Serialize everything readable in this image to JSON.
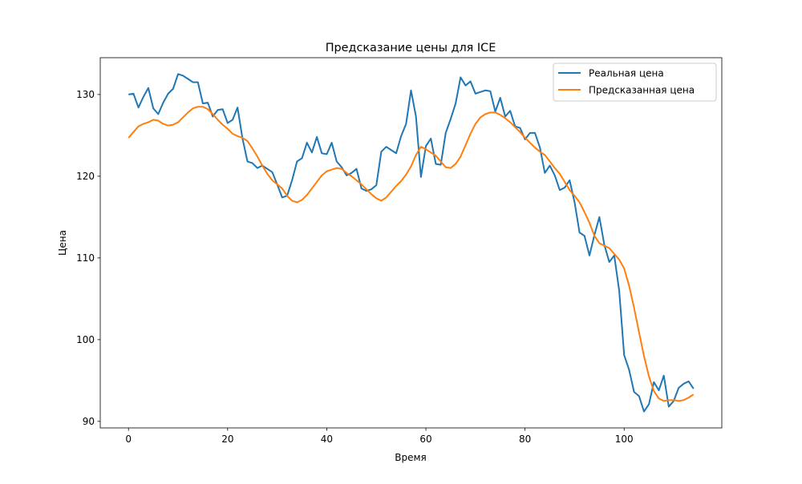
{
  "chart_data": {
    "type": "line",
    "title": "Предсказание цены для ICE",
    "xlabel": "Время",
    "ylabel": "Цена",
    "xlim": [
      -5.7,
      119.7
    ],
    "ylim": [
      89.2,
      134.5
    ],
    "xticks": [
      0,
      20,
      40,
      60,
      80,
      100
    ],
    "yticks": [
      90,
      100,
      110,
      120,
      130
    ],
    "grid": false,
    "legend_position": "top-right",
    "series": [
      {
        "name": "Реальная цена",
        "color": "#1f77b4",
        "x": [
          0,
          1,
          2,
          3,
          4,
          5,
          6,
          7,
          8,
          9,
          10,
          11,
          12,
          13,
          14,
          15,
          16,
          17,
          18,
          19,
          20,
          21,
          22,
          23,
          24,
          25,
          26,
          27,
          28,
          29,
          30,
          31,
          32,
          33,
          34,
          35,
          36,
          37,
          38,
          39,
          40,
          41,
          42,
          43,
          44,
          45,
          46,
          47,
          48,
          49,
          50,
          51,
          52,
          53,
          54,
          55,
          56,
          57,
          58,
          59,
          60,
          61,
          62,
          63,
          64,
          65,
          66,
          67,
          68,
          69,
          70,
          71,
          72,
          73,
          74,
          75,
          76,
          77,
          78,
          79,
          80,
          81,
          82,
          83,
          84,
          85,
          86,
          87,
          88,
          89,
          90,
          91,
          92,
          93,
          94,
          95,
          96,
          97,
          98,
          99,
          100,
          101,
          102,
          103,
          104,
          105,
          106,
          107,
          108,
          109,
          110,
          111,
          112,
          113,
          114
        ],
        "values": [
          130.0,
          130.1,
          128.4,
          129.7,
          130.8,
          128.3,
          127.6,
          129.0,
          130.1,
          130.7,
          132.5,
          132.3,
          131.9,
          131.5,
          131.5,
          128.9,
          129.0,
          127.3,
          128.1,
          128.2,
          126.5,
          126.9,
          128.4,
          124.6,
          121.8,
          121.6,
          121.0,
          121.3,
          120.9,
          120.5,
          119.0,
          117.4,
          117.6,
          119.5,
          121.8,
          122.2,
          124.1,
          122.9,
          124.8,
          122.8,
          122.7,
          124.1,
          121.8,
          121.1,
          120.1,
          120.4,
          120.9,
          118.5,
          118.2,
          118.4,
          118.9,
          123.0,
          123.6,
          123.2,
          122.8,
          124.9,
          126.4,
          130.5,
          127.3,
          119.9,
          123.7,
          124.6,
          121.5,
          121.4,
          125.3,
          127.0,
          128.9,
          132.1,
          131.1,
          131.6,
          130.1,
          130.3,
          130.5,
          130.4,
          127.9,
          129.6,
          127.3,
          128.0,
          126.1,
          125.9,
          124.5,
          125.3,
          125.3,
          123.5,
          120.4,
          121.3,
          120.1,
          118.3,
          118.6,
          119.5,
          116.8,
          113.1,
          112.7,
          110.3,
          112.8,
          115.0,
          111.6,
          109.5,
          110.3,
          106.0,
          98.1,
          96.3,
          93.6,
          93.1,
          91.2,
          92.1,
          94.8,
          93.8,
          95.6,
          91.8,
          92.5,
          94.1,
          94.6,
          94.9,
          94.0
        ]
      },
      {
        "name": "Предсказанная цена",
        "color": "#ff7f0e",
        "x": [
          0,
          1,
          2,
          3,
          4,
          5,
          6,
          7,
          8,
          9,
          10,
          11,
          12,
          13,
          14,
          15,
          16,
          17,
          18,
          19,
          20,
          21,
          22,
          23,
          24,
          25,
          26,
          27,
          28,
          29,
          30,
          31,
          32,
          33,
          34,
          35,
          36,
          37,
          38,
          39,
          40,
          41,
          42,
          43,
          44,
          45,
          46,
          47,
          48,
          49,
          50,
          51,
          52,
          53,
          54,
          55,
          56,
          57,
          58,
          59,
          60,
          61,
          62,
          63,
          64,
          65,
          66,
          67,
          68,
          69,
          70,
          71,
          72,
          73,
          74,
          75,
          76,
          77,
          78,
          79,
          80,
          81,
          82,
          83,
          84,
          85,
          86,
          87,
          88,
          89,
          90,
          91,
          92,
          93,
          94,
          95,
          96,
          97,
          98,
          99,
          100,
          101,
          102,
          103,
          104,
          105,
          106,
          107,
          108,
          109,
          110,
          111,
          112,
          113,
          114
        ],
        "values": [
          124.7,
          125.4,
          126.1,
          126.4,
          126.6,
          126.9,
          126.8,
          126.4,
          126.2,
          126.3,
          126.6,
          127.2,
          127.8,
          128.3,
          128.5,
          128.5,
          128.2,
          127.6,
          126.9,
          126.3,
          125.8,
          125.2,
          124.9,
          124.7,
          124.3,
          123.4,
          122.4,
          121.3,
          120.3,
          119.5,
          119.0,
          118.5,
          117.6,
          117.0,
          116.8,
          117.1,
          117.7,
          118.5,
          119.3,
          120.1,
          120.6,
          120.8,
          121.0,
          120.9,
          120.4,
          120.0,
          119.5,
          119.0,
          118.4,
          117.8,
          117.3,
          117.0,
          117.4,
          118.1,
          118.8,
          119.4,
          120.2,
          121.2,
          122.6,
          123.6,
          123.3,
          122.9,
          122.5,
          121.8,
          121.1,
          121.0,
          121.5,
          122.4,
          123.8,
          125.2,
          126.4,
          127.2,
          127.6,
          127.8,
          127.8,
          127.5,
          127.1,
          126.6,
          126.0,
          125.4,
          124.7,
          124.1,
          123.5,
          123.0,
          122.6,
          121.8,
          121.0,
          120.3,
          119.3,
          118.3,
          117.6,
          116.8,
          115.6,
          114.3,
          112.7,
          111.8,
          111.5,
          111.2,
          110.5,
          109.8,
          108.7,
          106.6,
          103.9,
          100.9,
          98.0,
          95.5,
          93.7,
          92.8,
          92.5,
          92.6,
          92.6,
          92.5,
          92.6,
          92.9,
          93.3
        ]
      }
    ]
  }
}
